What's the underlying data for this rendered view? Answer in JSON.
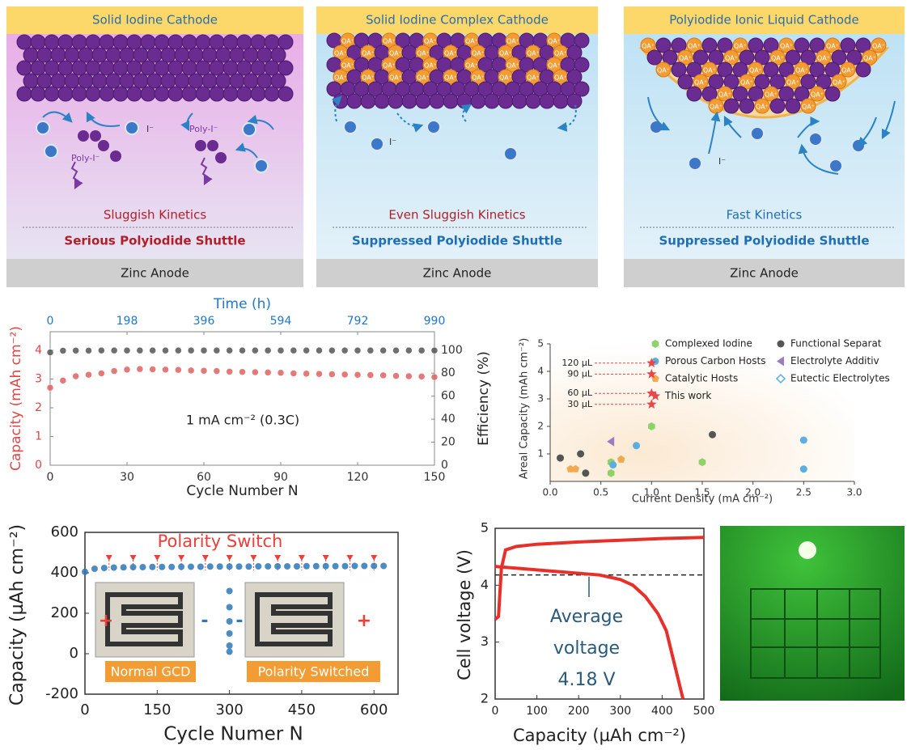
{
  "schematics": [
    {
      "title": "Solid Iodine Cathode",
      "ion_label": "I⁻",
      "poly_label": "Poly-I⁻",
      "kinetics": "Sluggish Kinetics",
      "shuttle": "Serious Polyiodide Shuttle",
      "anode": "Zinc Anode",
      "kinetics_color": "#b0202a",
      "shuttle_color": "#b0202a"
    },
    {
      "title": "Solid Iodine Complex Cathode",
      "ion_label": "I⁻",
      "complex_label": "QA⁺",
      "kinetics": "Even Sluggish Kinetics",
      "shuttle": "Suppressed Polyiodide Shuttle",
      "anode": "Zinc Anode",
      "kinetics_color": "#b0202a",
      "shuttle_color": "#1f6fb5"
    },
    {
      "title": "Polyiodide Ionic Liquid Cathode",
      "ion_label": "I⁻",
      "complex_label": "QA⁺",
      "kinetics": "Fast Kinetics",
      "shuttle": "Suppressed Polyiodide Shuttle",
      "anode": "Zinc Anode",
      "kinetics_color": "#1f6fb5",
      "shuttle_color": "#1f6fb5"
    }
  ],
  "chart_data": [
    {
      "type": "line",
      "annotation": "1 mA cm⁻² (0.3C)",
      "xlabel": "Cycle Number N",
      "x2label": "Time (h)",
      "ylabel": "Capacity (mAh cm⁻²)",
      "y2label": "Efficiency (%)",
      "xlim": [
        0,
        150
      ],
      "xticks": [
        0,
        30,
        60,
        90,
        120,
        150
      ],
      "x2lim": [
        0,
        990
      ],
      "x2ticks": [
        0,
        198,
        396,
        594,
        792,
        990
      ],
      "ylim": [
        0,
        4.65
      ],
      "yticks": [
        0,
        1,
        2,
        3,
        4
      ],
      "y2lim": [
        0,
        116
      ],
      "y2ticks": [
        0,
        20,
        40,
        60,
        80,
        100
      ],
      "x": [
        0,
        5,
        10,
        15,
        20,
        25,
        30,
        35,
        40,
        45,
        50,
        55,
        60,
        65,
        70,
        75,
        80,
        85,
        90,
        95,
        100,
        105,
        110,
        115,
        120,
        125,
        130,
        135,
        140,
        145,
        150
      ],
      "series": [
        {
          "color": "#e06262",
          "values": [
            2.7,
            2.95,
            3.1,
            3.15,
            3.2,
            3.28,
            3.33,
            3.35,
            3.34,
            3.33,
            3.32,
            3.3,
            3.29,
            3.28,
            3.26,
            3.25,
            3.24,
            3.23,
            3.22,
            3.2,
            3.19,
            3.18,
            3.17,
            3.16,
            3.15,
            3.14,
            3.13,
            3.11,
            3.1,
            3.09,
            3.07
          ]
        },
        {
          "color": "#555555",
          "axis": "y2",
          "values": [
            98,
            99.5,
            99.6,
            99.6,
            99.7,
            99.7,
            99.7,
            99.7,
            99.7,
            99.7,
            99.7,
            99.7,
            99.7,
            99.7,
            99.7,
            99.7,
            99.7,
            99.7,
            99.7,
            99.7,
            99.7,
            99.7,
            99.7,
            99.7,
            99.7,
            99.7,
            99.7,
            99.7,
            99.7,
            99.7,
            99.7
          ]
        }
      ]
    },
    {
      "type": "scatter",
      "xlabel": "Current Density (mA cm⁻²)",
      "ylabel": "Areal Capacity (mAh cm⁻²)",
      "xlim": [
        0,
        3
      ],
      "xticks": [
        {
          "value": 0,
          "label": "0.0"
        },
        {
          "value": 0.5,
          "label": "0.5"
        },
        {
          "value": 1,
          "label": "1.0"
        },
        {
          "value": 1.5,
          "label": "1.5"
        },
        {
          "value": 2,
          "label": "2.0"
        },
        {
          "value": 2.5,
          "label": "2.5"
        },
        {
          "value": 3,
          "label": "3.0"
        }
      ],
      "ylim": [
        0,
        5
      ],
      "yticks": [
        1,
        2,
        3,
        4,
        5
      ],
      "series": [
        {
          "name": "Complexed Iodine",
          "color": "#8fd16a",
          "marker": "hexagon",
          "x": [
            0.6,
            0.6,
            1.0,
            1.5
          ],
          "values": [
            0.7,
            0.3,
            2.0,
            0.7
          ]
        },
        {
          "name": "Porous Carbon Hosts",
          "color": "#5aaee0",
          "marker": "circle",
          "x": [
            0.85,
            2.5,
            2.5,
            0.62
          ],
          "values": [
            1.3,
            1.5,
            0.45,
            0.6
          ]
        },
        {
          "name": "Catalytic Hosts",
          "color": "#f2a950",
          "marker": "pentagon",
          "x": [
            0.2,
            0.25,
            0.7
          ],
          "values": [
            0.45,
            0.45,
            0.8
          ]
        },
        {
          "name": "This work",
          "color": "#e8474a",
          "marker": "star",
          "x": [
            1.0,
            1.0,
            1.0,
            1.0
          ],
          "values": [
            4.3,
            3.9,
            3.2,
            2.8
          ],
          "point_labels": [
            "120 µL",
            "90 µL",
            "60 µL",
            "30 µL"
          ]
        },
        {
          "name": "Functional Separat",
          "color": "#555555",
          "marker": "circle",
          "x": [
            0.1,
            0.3,
            0.35,
            1.6
          ],
          "values": [
            0.85,
            1.0,
            0.3,
            1.7
          ]
        },
        {
          "name": "Electrolyte Additiv",
          "color": "#9b7bc4",
          "marker": "triangle",
          "x": [
            0.6
          ],
          "values": [
            1.45
          ]
        },
        {
          "name": "Eutectic Electrolytes",
          "color": "#5aaee0",
          "marker": "diamond",
          "x": [],
          "values": []
        }
      ]
    },
    {
      "type": "scatter",
      "xlabel": "Cycle Numer N",
      "ylabel": "Capacity (µAh cm⁻²)",
      "annotation": "Polarity Switch",
      "xlim": [
        0,
        650
      ],
      "xticks": [
        0,
        150,
        300,
        450,
        600
      ],
      "ylim": [
        -200,
        600
      ],
      "yticks": [
        -200,
        0,
        200,
        400,
        600
      ],
      "switch_cycles": [
        50,
        100,
        150,
        200,
        250,
        300,
        350,
        400,
        450,
        500,
        550,
        600
      ],
      "insets": [
        {
          "label": "Normal GCD",
          "left": "+",
          "right": "-"
        },
        {
          "label": "Polarity Switched",
          "left": "-",
          "right": "+"
        }
      ],
      "series": [
        {
          "color": "#2e78b7",
          "x": [
            0,
            20,
            40,
            60,
            80,
            100,
            120,
            140,
            160,
            180,
            200,
            220,
            240,
            260,
            280,
            300,
            320,
            340,
            360,
            380,
            400,
            420,
            440,
            460,
            480,
            500,
            520,
            540,
            560,
            580,
            600,
            620,
            300,
            300,
            300,
            300,
            300,
            300
          ],
          "values": [
            405,
            420,
            424,
            426,
            427,
            428,
            428,
            429,
            429,
            429,
            430,
            430,
            430,
            431,
            431,
            431,
            431,
            431,
            432,
            432,
            432,
            432,
            432,
            433,
            433,
            433,
            433,
            433,
            434,
            434,
            434,
            434,
            310,
            230,
            160,
            100,
            40,
            10
          ]
        }
      ]
    },
    {
      "type": "line",
      "xlabel": "Capacity (µAh cm⁻²)",
      "ylabel": "Cell voltage (V)",
      "xlim": [
        0,
        500
      ],
      "xticks": [
        0,
        100,
        200,
        300,
        400,
        500
      ],
      "ylim": [
        2,
        5
      ],
      "yticks": [
        2,
        3,
        4,
        5
      ],
      "average_voltage": 4.18,
      "annotation": [
        "Average",
        "voltage",
        "4.18 V"
      ],
      "series": [
        {
          "color": "#e8302a",
          "x": [
            0,
            8,
            15,
            25,
            50,
            100,
            200,
            300,
            400,
            500
          ],
          "values": [
            3.4,
            3.45,
            4.3,
            4.62,
            4.68,
            4.72,
            4.76,
            4.79,
            4.82,
            4.84
          ]
        },
        {
          "color": "#e8302a",
          "x": [
            0,
            50,
            100,
            150,
            200,
            250,
            300,
            330,
            360,
            390,
            410,
            430,
            450
          ],
          "values": [
            4.33,
            4.3,
            4.27,
            4.24,
            4.21,
            4.18,
            4.1,
            4.0,
            3.8,
            3.5,
            3.2,
            2.6,
            2.0
          ]
        }
      ]
    }
  ]
}
